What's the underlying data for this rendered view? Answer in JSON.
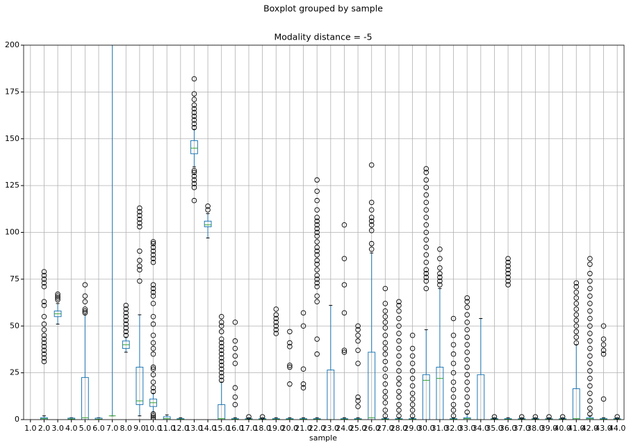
{
  "chart_data": {
    "type": "box",
    "title": "Boxplot grouped by sample",
    "subtitle": "Modality distance = -5",
    "x_label": "sample",
    "categories": [
      "1.0",
      "2.0",
      "3.0",
      "4.0",
      "5.0",
      "6.0",
      "7.0",
      "8.0",
      "9.0",
      "10.0",
      "11.0",
      "12.0",
      "13.0",
      "14.0",
      "15.0",
      "16.0",
      "17.0",
      "18.0",
      "19.0",
      "20.0",
      "21.0",
      "22.0",
      "23.0",
      "24.0",
      "25.0",
      "26.0",
      "27.0",
      "28.0",
      "29.0",
      "30.0",
      "31.0",
      "32.0",
      "33.0",
      "34.0",
      "35.0",
      "36.0",
      "37.0",
      "38.0",
      "39.0",
      "40.0",
      "41.0",
      "42.0",
      "43.0",
      "44.0"
    ],
    "boxes": [
      null,
      {
        "whislo": 0,
        "q1": 0,
        "med": 0.5,
        "q3": 1,
        "whishi": 2,
        "fliers": [
          31,
          33,
          35,
          37,
          39,
          41,
          43,
          45,
          48,
          51,
          55,
          61,
          63,
          71,
          73,
          75,
          77,
          79
        ]
      },
      {
        "whislo": 51,
        "q1": 55,
        "med": 56.5,
        "q3": 58,
        "whishi": 62,
        "fliers": [
          64,
          65,
          66,
          67
        ]
      },
      {
        "whislo": 0,
        "q1": 0,
        "med": 0.3,
        "q3": 0.8,
        "whishi": 1,
        "fliers": []
      },
      {
        "whislo": 0,
        "q1": 0,
        "med": 1,
        "q3": 22.5,
        "whishi": 56,
        "fliers": [
          57,
          58,
          59,
          63,
          66,
          72
        ]
      },
      {
        "whislo": 0,
        "q1": 0,
        "med": 0.2,
        "q3": 0.8,
        "whishi": 1,
        "fliers": []
      },
      {
        "whislo": 2,
        "q1": 2,
        "med": 2,
        "q3": 2,
        "whishi": 250,
        "fliers": []
      },
      {
        "whislo": 36,
        "q1": 38,
        "med": 40,
        "q3": 42,
        "whishi": 44,
        "fliers": [
          45,
          47,
          49,
          51,
          53,
          55,
          57,
          59,
          61
        ]
      },
      {
        "whislo": 2,
        "q1": 8,
        "med": 10,
        "q3": 28,
        "whishi": 56,
        "fliers": [
          74,
          80,
          82,
          85,
          90,
          103,
          105,
          107,
          109,
          111,
          113
        ]
      },
      {
        "whislo": 4,
        "q1": 7,
        "med": 9,
        "q3": 11,
        "whishi": 14,
        "fliers": [
          0,
          1,
          2,
          3,
          15,
          17,
          20,
          24,
          27,
          28,
          35,
          38,
          41,
          45,
          51,
          55,
          62,
          66,
          68,
          70,
          72,
          84,
          86,
          88,
          90,
          92,
          94,
          95
        ]
      },
      {
        "whislo": 0,
        "q1": 0,
        "med": 0.5,
        "q3": 1.5,
        "whishi": 2.5,
        "fliers": []
      },
      {
        "whislo": 0,
        "q1": 0,
        "med": 0.2,
        "q3": 0.5,
        "whishi": 1,
        "fliers": []
      },
      {
        "whislo": 135,
        "q1": 142,
        "med": 145,
        "q3": 149,
        "whishi": 155,
        "fliers": [
          117,
          124,
          126,
          128,
          130,
          132,
          133,
          156,
          158,
          160,
          162,
          164,
          166,
          168,
          171,
          174,
          182
        ]
      },
      {
        "whislo": 97,
        "q1": 103,
        "med": 104,
        "q3": 106,
        "whishi": 110,
        "fliers": [
          112,
          114
        ]
      },
      {
        "whislo": 0,
        "q1": 0,
        "med": 0.5,
        "q3": 8,
        "whishi": 20,
        "fliers": [
          21,
          23,
          25,
          27,
          29,
          31,
          33,
          35,
          37,
          39,
          41,
          43,
          47,
          50,
          52,
          55
        ]
      },
      {
        "whislo": 0,
        "q1": 0,
        "med": 0.2,
        "q3": 0.5,
        "whishi": 1,
        "fliers": [
          8,
          12,
          17,
          30,
          34,
          38,
          42,
          52
        ]
      },
      {
        "whislo": 0,
        "q1": 0,
        "med": 0.2,
        "q3": 0.5,
        "whishi": 1,
        "fliers": [
          1.5
        ]
      },
      {
        "whislo": 0,
        "q1": 0,
        "med": 0.2,
        "q3": 0.5,
        "whishi": 1,
        "fliers": [
          1.5
        ]
      },
      {
        "whislo": 0,
        "q1": 0,
        "med": 0.2,
        "q3": 0.5,
        "whishi": 1,
        "fliers": [
          46,
          48,
          50,
          52,
          54,
          56,
          59
        ]
      },
      {
        "whislo": 0,
        "q1": 0,
        "med": 0.2,
        "q3": 0.5,
        "whishi": 1,
        "fliers": [
          19,
          28,
          29,
          39,
          41,
          47
        ]
      },
      {
        "whislo": 0,
        "q1": 0,
        "med": 0.2,
        "q3": 0.5,
        "whishi": 1,
        "fliers": [
          17,
          19,
          27,
          50,
          57
        ]
      },
      {
        "whislo": 0,
        "q1": 0,
        "med": 0.2,
        "q3": 0.5,
        "whishi": 1,
        "fliers": [
          35,
          43,
          63,
          66,
          71,
          73,
          75,
          77,
          80,
          83,
          85,
          88,
          90,
          92,
          95,
          98,
          100,
          102,
          104,
          106,
          108,
          112,
          117,
          122,
          128
        ]
      },
      {
        "whislo": 0,
        "q1": 0,
        "med": 0,
        "q3": 26.5,
        "whishi": 61,
        "fliers": []
      },
      {
        "whislo": 0,
        "q1": 0,
        "med": 0.2,
        "q3": 0.5,
        "whishi": 1,
        "fliers": [
          36,
          37,
          57,
          72,
          86,
          104
        ]
      },
      {
        "whislo": 0,
        "q1": 0,
        "med": 0.2,
        "q3": 0.5,
        "whishi": 1,
        "fliers": [
          7,
          10,
          12,
          30,
          37,
          42,
          45,
          48,
          50
        ]
      },
      {
        "whislo": 0,
        "q1": 0,
        "med": 1,
        "q3": 36,
        "whishi": 89,
        "fliers": [
          91,
          94,
          101,
          104,
          106,
          108,
          112,
          116,
          136
        ]
      },
      {
        "whislo": 0,
        "q1": 0,
        "med": 0.2,
        "q3": 0.5,
        "whishi": 1,
        "fliers": [
          2,
          5,
          9,
          12,
          15,
          19,
          23,
          27,
          31,
          35,
          38,
          41,
          45,
          49,
          52,
          55,
          58,
          62,
          70
        ]
      },
      {
        "whislo": 0,
        "q1": 0,
        "med": 0.2,
        "q3": 0.5,
        "whishi": 1,
        "fliers": [
          2,
          5,
          8,
          12,
          15,
          19,
          22,
          26,
          30,
          34,
          38,
          42,
          46,
          50,
          54,
          58,
          61,
          63
        ]
      },
      {
        "whislo": 0,
        "q1": 0,
        "med": 0.2,
        "q3": 0.5,
        "whishi": 1,
        "fliers": [
          2,
          5,
          8,
          11,
          14,
          18,
          22,
          26,
          30,
          34,
          38,
          45
        ]
      },
      {
        "whislo": 0,
        "q1": 0,
        "med": 21,
        "q3": 24,
        "whishi": 48,
        "fliers": [
          70,
          74,
          76,
          78,
          80,
          84,
          88,
          92,
          96,
          100,
          104,
          108,
          112,
          116,
          120,
          124,
          128,
          132,
          134
        ]
      },
      {
        "whislo": 0,
        "q1": 0,
        "med": 22,
        "q3": 28,
        "whishi": 70,
        "fliers": [
          72,
          74,
          76,
          78,
          81,
          86,
          91
        ]
      },
      {
        "whislo": 0,
        "q1": 0,
        "med": 0.2,
        "q3": 0.5,
        "whishi": 1,
        "fliers": [
          2,
          5,
          8,
          12,
          16,
          20,
          25,
          30,
          35,
          40,
          45,
          54
        ]
      },
      {
        "whislo": 0,
        "q1": 0,
        "med": 0.5,
        "q3": 1,
        "whishi": 3,
        "fliers": [
          4,
          8,
          12,
          16,
          20,
          24,
          28,
          32,
          36,
          40,
          44,
          48,
          52,
          56,
          60,
          63,
          65
        ]
      },
      {
        "whislo": 0,
        "q1": 0,
        "med": 0,
        "q3": 24,
        "whishi": 54,
        "fliers": []
      },
      {
        "whislo": 0,
        "q1": 0,
        "med": 0.2,
        "q3": 0.5,
        "whishi": 1,
        "fliers": [
          1.5
        ]
      },
      {
        "whislo": 0,
        "q1": 0,
        "med": 0.2,
        "q3": 0.5,
        "whishi": 1,
        "fliers": [
          72,
          74,
          76,
          78,
          80,
          82,
          84,
          86
        ]
      },
      {
        "whislo": 0,
        "q1": 0,
        "med": 0.2,
        "q3": 0.5,
        "whishi": 1,
        "fliers": [
          1.5
        ]
      },
      {
        "whislo": 0,
        "q1": 0,
        "med": 0.2,
        "q3": 0.5,
        "whishi": 1,
        "fliers": [
          1.5
        ]
      },
      {
        "whislo": 0,
        "q1": 0,
        "med": 0.2,
        "q3": 0.5,
        "whishi": 1,
        "fliers": [
          1.5
        ]
      },
      {
        "whislo": 0,
        "q1": 0,
        "med": 0.2,
        "q3": 0.5,
        "whishi": 1,
        "fliers": [
          1.5
        ]
      },
      {
        "whislo": 0,
        "q1": 0,
        "med": 0.5,
        "q3": 16.5,
        "whishi": 40,
        "fliers": [
          41,
          44,
          47,
          50,
          53,
          56,
          59,
          62,
          65,
          68,
          71,
          73
        ]
      },
      {
        "whislo": 0,
        "q1": 0,
        "med": 0.5,
        "q3": 1,
        "whishi": 2,
        "fliers": [
          3,
          6,
          10,
          14,
          18,
          22,
          26,
          30,
          34,
          38,
          42,
          46,
          50,
          54,
          58,
          62,
          66,
          70,
          74,
          78,
          83,
          86
        ]
      },
      {
        "whislo": 0,
        "q1": 0,
        "med": 0.2,
        "q3": 0.5,
        "whishi": 1,
        "fliers": [
          11,
          35,
          37,
          40,
          43,
          50
        ]
      },
      {
        "whislo": 0,
        "q1": 0,
        "med": 0.2,
        "q3": 0.5,
        "whishi": 1,
        "fliers": [
          1.5
        ]
      }
    ],
    "ylim": [
      0,
      200
    ],
    "yticks": [
      0,
      25,
      50,
      75,
      100,
      125,
      150,
      175,
      200
    ],
    "grid": true,
    "box_color": "#1f77b4",
    "median_color": "#2ca02c",
    "flier_color": "#000000"
  }
}
